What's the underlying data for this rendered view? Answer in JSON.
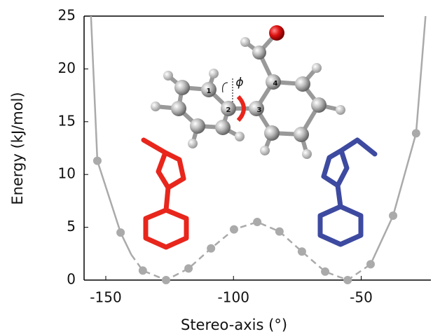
{
  "chart_data": {
    "type": "line",
    "x_label": "Stereo-axis (°)",
    "y_label": "Energy (kJ/mol)",
    "xlim": [
      -158.5,
      -22.7
    ],
    "ylim": [
      0,
      25
    ],
    "xticks": [
      -150,
      -100,
      -50
    ],
    "yticks": [
      0,
      5,
      10,
      15,
      20,
      25
    ],
    "annotations": [
      "1",
      "2",
      "3",
      "4",
      "ϕ"
    ],
    "points": {
      "color": "#aaaaaa",
      "x": [
        -153.3,
        -144.2,
        -135.5,
        -126.4,
        -117.6,
        -108.8,
        -99.8,
        -90.7,
        -82.0,
        -73.2,
        -64.1,
        -55.3,
        -46.3,
        -37.5,
        -28.5
      ],
      "values": [
        11.3,
        4.5,
        0.9,
        0,
        1.1,
        3.0,
        4.8,
        5.5,
        4.6,
        2.7,
        0.8,
        0,
        1.5,
        6.1,
        13.9
      ]
    },
    "series": [
      {
        "style": "solid",
        "color": "#aaaaaa",
        "x": [
          -155.8,
          -153.3,
          -144.2,
          -140.0
        ],
        "values": [
          25,
          11.3,
          4.5,
          2.4
        ]
      },
      {
        "style": "dashed",
        "color": "#aaaaaa",
        "x": [
          -140.0,
          -135.5,
          -126.4,
          -117.6,
          -108.8,
          -99.8,
          -90.7,
          -82.0,
          -73.2,
          -64.1,
          -55.3,
          -46.3
        ],
        "values": [
          2.4,
          0.9,
          0,
          1.1,
          3.0,
          4.8,
          5.5,
          4.6,
          2.7,
          0.8,
          0,
          1.5
        ]
      },
      {
        "style": "solid",
        "color": "#aaaaaa",
        "x": [
          -46.3,
          -37.5,
          -28.5,
          -24.8
        ],
        "values": [
          1.5,
          6.1,
          13.9,
          25
        ]
      }
    ]
  }
}
